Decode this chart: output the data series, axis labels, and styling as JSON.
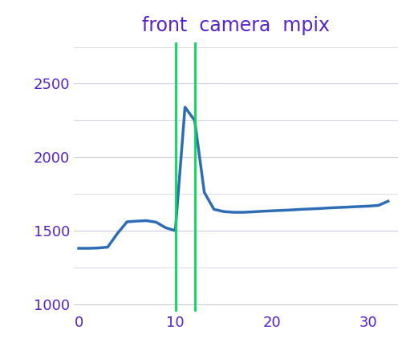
{
  "x": [
    0,
    1,
    2,
    3,
    4,
    5,
    6,
    7,
    8,
    9,
    10,
    11,
    12,
    13,
    14,
    15,
    16,
    17,
    18,
    19,
    20,
    21,
    22,
    23,
    24,
    25,
    26,
    27,
    28,
    29,
    30,
    31,
    32
  ],
  "y": [
    1380,
    1380,
    1382,
    1388,
    1480,
    1560,
    1565,
    1568,
    1558,
    1520,
    1500,
    2340,
    2250,
    1760,
    1645,
    1630,
    1625,
    1625,
    1628,
    1632,
    1635,
    1638,
    1641,
    1645,
    1648,
    1651,
    1655,
    1658,
    1661,
    1664,
    1667,
    1672,
    1700
  ],
  "vline_x": [
    10,
    12
  ],
  "vline_color": "#00dd55",
  "line_color": "#2e6db4",
  "line_width": 2.5,
  "title": "front  camera  mpix",
  "title_color": "#5522cc",
  "title_fontsize": 17,
  "tick_color": "#5522cc",
  "tick_fontsize": 13,
  "xlim": [
    -0.5,
    33
  ],
  "ylim": [
    950,
    2780
  ],
  "yticks": [
    1000,
    1500,
    2000,
    2500
  ],
  "xticks": [
    0,
    10,
    20,
    30
  ],
  "major_grid_color": "#ccccdd",
  "minor_grid_color": "#ddddee",
  "grid_linewidth": 0.8,
  "background_color": "#ffffff",
  "minor_ytick_interval": 250
}
